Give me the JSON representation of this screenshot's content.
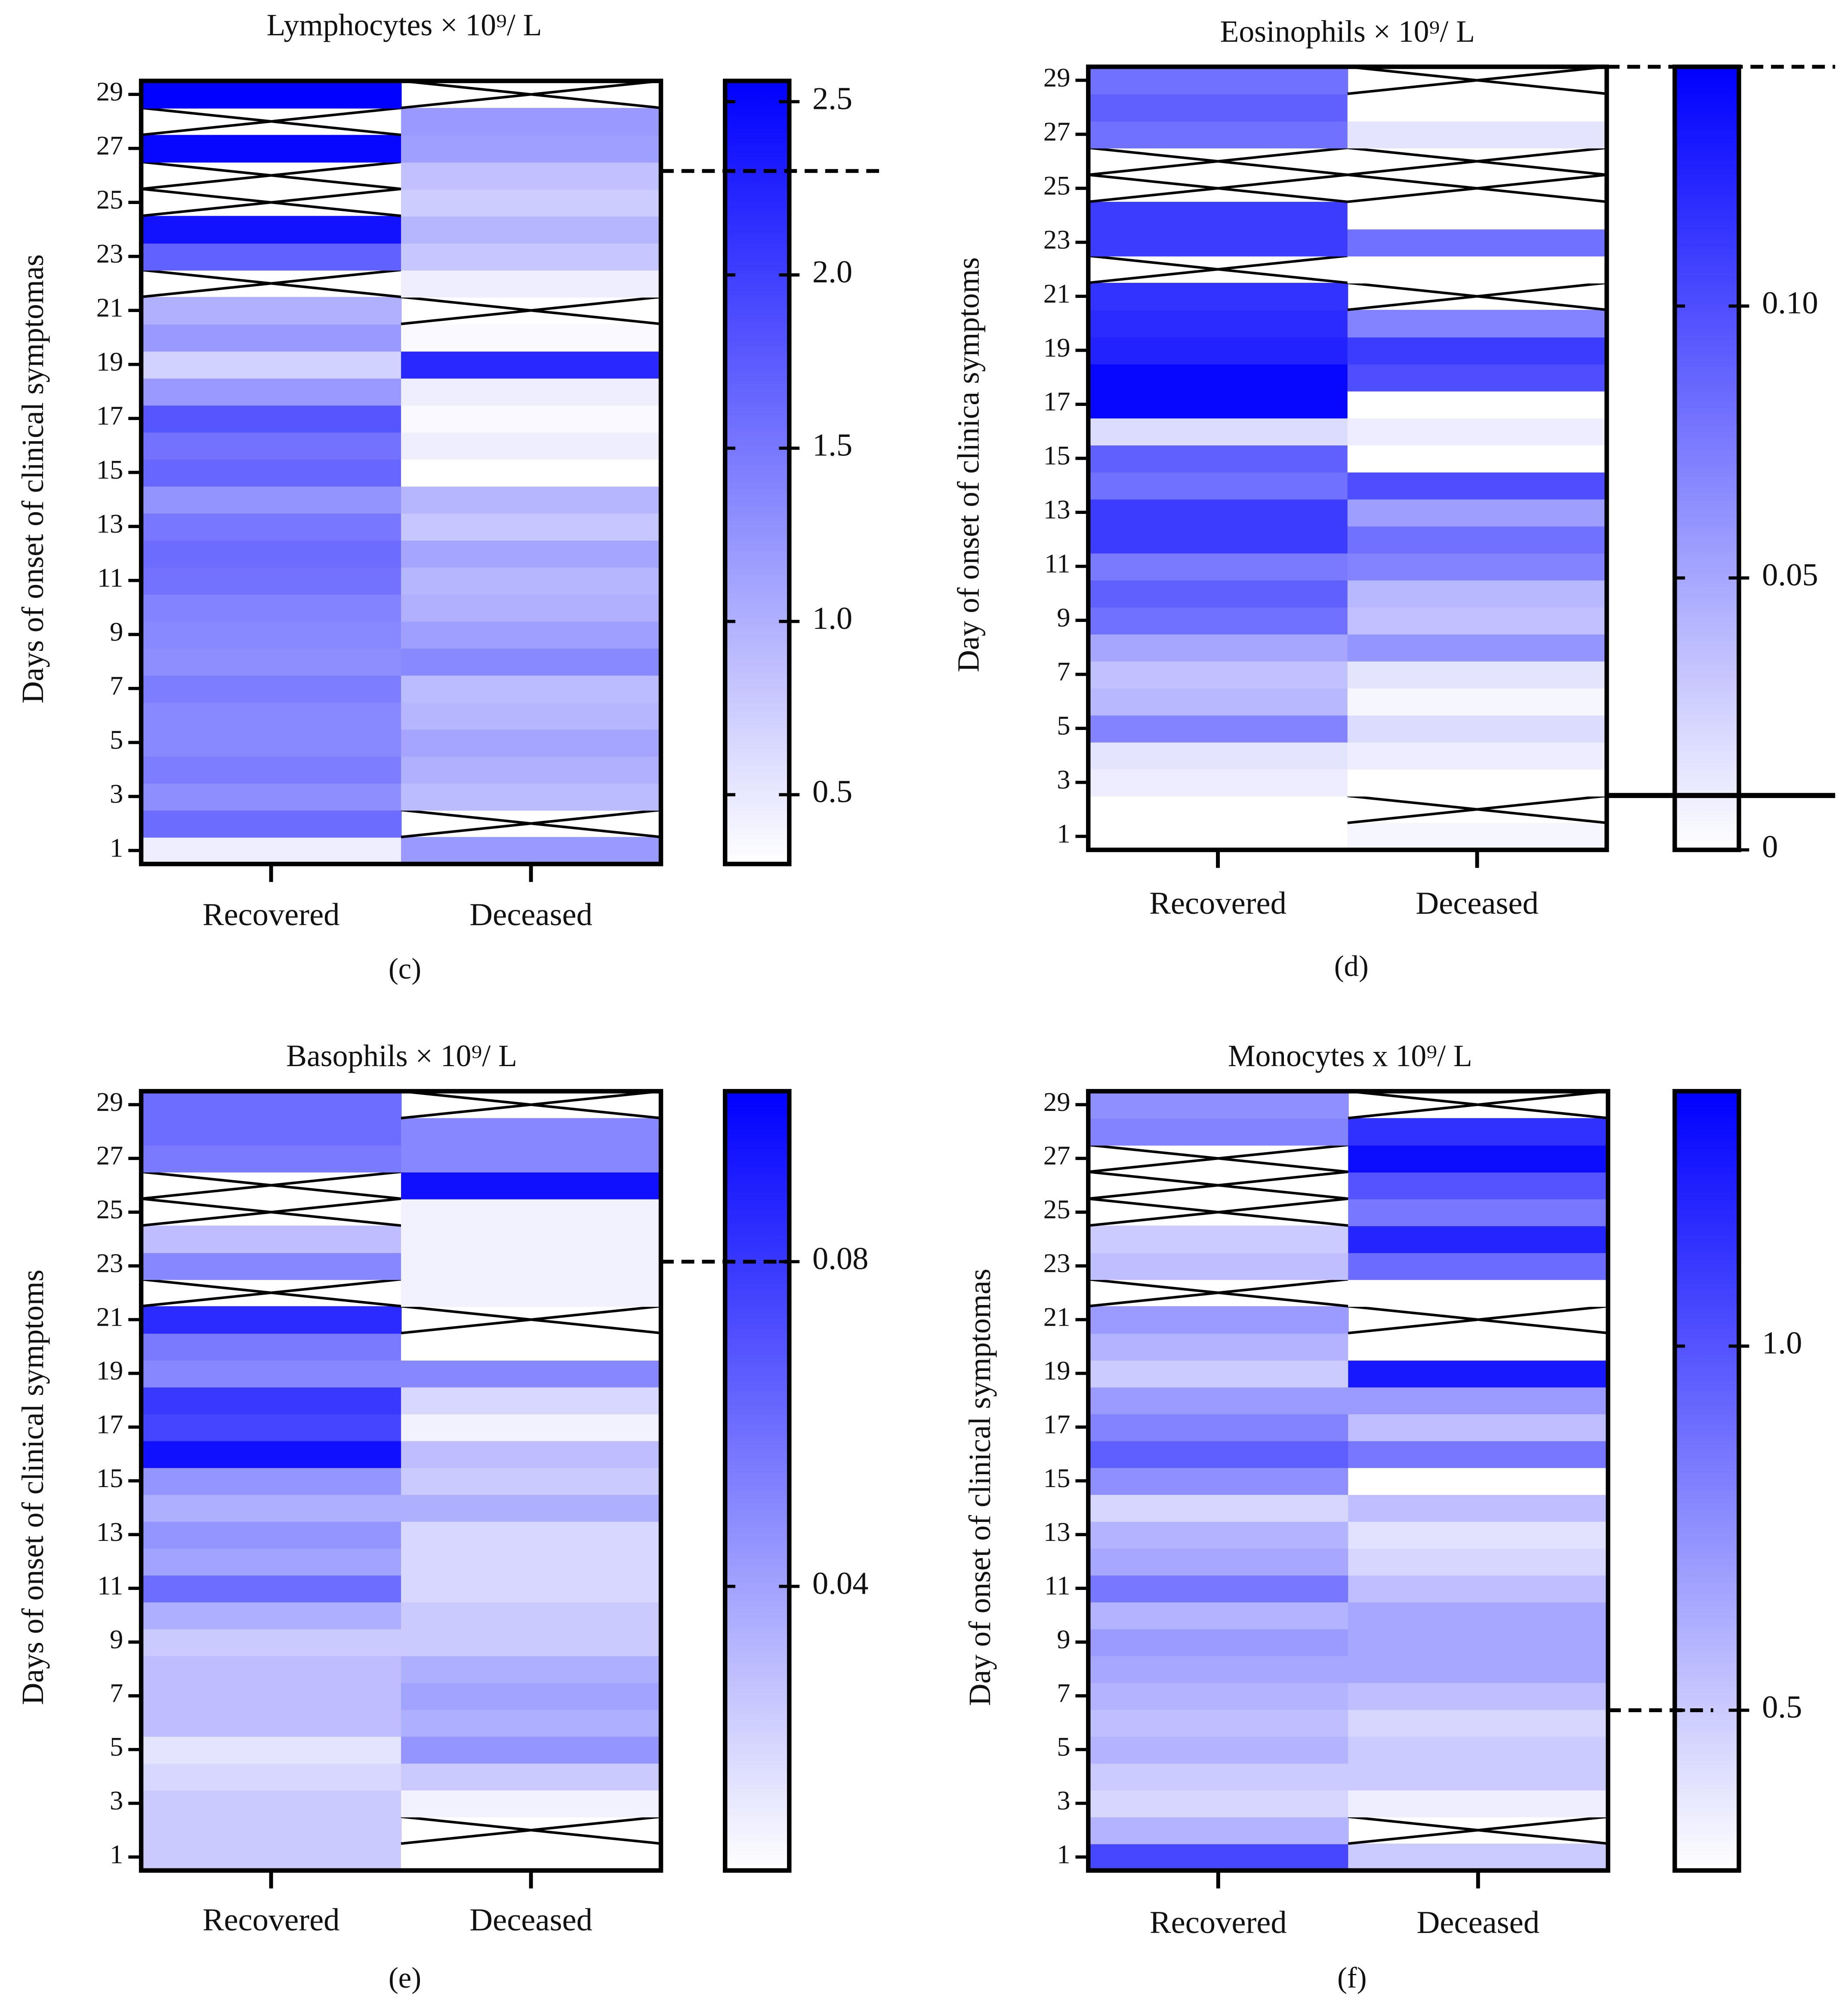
{
  "chart_data": [
    {
      "type": "heatmap",
      "title": "Lymphocytes × 10⁹/ L",
      "panel_label": "(c)",
      "y_label": "Days of onset of clinical symptomas",
      "categories": [
        "Recovered",
        "Deceased"
      ],
      "y": [
        1,
        2,
        3,
        4,
        5,
        6,
        7,
        8,
        9,
        10,
        11,
        12,
        13,
        14,
        15,
        16,
        17,
        18,
        19,
        20,
        21,
        22,
        23,
        24,
        25,
        26,
        27,
        28,
        29
      ],
      "ylim": [
        0.5,
        29.5
      ],
      "yticks": [
        1,
        3,
        5,
        7,
        9,
        11,
        13,
        15,
        17,
        19,
        21,
        23,
        25,
        27,
        29
      ],
      "values": [
        [
          0.45,
          1.6,
          1.3,
          1.45,
          1.35,
          1.35,
          1.45,
          1.3,
          1.35,
          1.4,
          1.55,
          1.6,
          1.5,
          1.25,
          1.65,
          1.55,
          1.8,
          1.2,
          0.7,
          1.2,
          1.0,
          null,
          1.7,
          2.4,
          null,
          null,
          2.5,
          null,
          2.55
        ],
        [
          1.2,
          null,
          0.9,
          1.0,
          1.1,
          0.95,
          0.9,
          1.35,
          1.15,
          1.0,
          0.95,
          1.1,
          0.8,
          0.95,
          0.3,
          0.45,
          0.35,
          0.45,
          2.2,
          0.35,
          null,
          0.45,
          0.8,
          0.95,
          0.75,
          0.85,
          1.15,
          1.2,
          null
        ]
      ],
      "colorscale": [
        "#ffffff",
        "#0000ff"
      ],
      "clim": [
        0.3,
        2.56
      ],
      "cticks": [
        0.5,
        {
          "value": 1.0,
          "label": "1.0"
        },
        1.5,
        {
          "value": 2.0,
          "label": "2.0"
        },
        2.5
      ],
      "reference_lines": [
        {
          "value": 2.3,
          "style": "dashed"
        }
      ]
    },
    {
      "type": "heatmap",
      "title": "Eosinophils × 10⁹/ L",
      "panel_label": "(d)",
      "y_label": "Day of onset of clinica symptoms",
      "categories": [
        "Recovered",
        "Deceased"
      ],
      "y": [
        1,
        2,
        3,
        4,
        5,
        6,
        7,
        8,
        9,
        10,
        11,
        12,
        13,
        14,
        15,
        16,
        17,
        18,
        19,
        20,
        21,
        22,
        23,
        24,
        25,
        26,
        27,
        28,
        29
      ],
      "ylim": [
        0.5,
        29.5
      ],
      "yticks": [
        1,
        3,
        5,
        7,
        9,
        11,
        13,
        15,
        17,
        19,
        21,
        23,
        25,
        27,
        29
      ],
      "values": [
        [
          0,
          0,
          0.01,
          0.015,
          0.07,
          0.04,
          0.035,
          0.05,
          0.08,
          0.09,
          0.075,
          0.11,
          0.11,
          0.08,
          0.09,
          0.02,
          0.14,
          0.14,
          0.125,
          0.12,
          0.115,
          null,
          0.11,
          0.11,
          null,
          null,
          0.08,
          0.09,
          0.08
        ],
        [
          0.005,
          null,
          0,
          0.01,
          0.02,
          0.005,
          0.015,
          0.06,
          0.035,
          0.04,
          0.07,
          0.08,
          0.055,
          0.1,
          0,
          0.01,
          0,
          0.1,
          0.11,
          0.07,
          null,
          0,
          0.08,
          0,
          null,
          null,
          0.015,
          0,
          null
        ]
      ],
      "colorscale": [
        "#ffffff",
        "#0000ff"
      ],
      "clim": [
        0,
        0.144
      ],
      "cticks": [
        0,
        0.05,
        {
          "value": 0.1,
          "label": "0.10"
        }
      ],
      "reference_lines": [
        {
          "value": 0.144,
          "style": "dashed"
        },
        {
          "value": 0.01,
          "style": "solid"
        }
      ]
    },
    {
      "type": "heatmap",
      "title": "Basophils × 10⁹/ L",
      "panel_label": "(e)",
      "y_label": "Days of onset of clinical symptoms",
      "categories": [
        "Recovered",
        "Deceased"
      ],
      "y": [
        1,
        2,
        3,
        4,
        5,
        6,
        7,
        8,
        9,
        10,
        11,
        12,
        13,
        14,
        15,
        16,
        17,
        18,
        19,
        20,
        21,
        22,
        23,
        24,
        25,
        26,
        27,
        28,
        29
      ],
      "ylim": [
        0.5,
        29.5
      ],
      "yticks": [
        1,
        3,
        5,
        7,
        9,
        11,
        13,
        15,
        17,
        19,
        21,
        23,
        25,
        27,
        29
      ],
      "values": [
        [
          0.025,
          0.025,
          0.025,
          0.02,
          0.015,
          0.03,
          0.03,
          0.03,
          0.025,
          0.035,
          0.06,
          0.04,
          0.045,
          0.035,
          0.045,
          0.095,
          0.075,
          0.08,
          0.05,
          0.055,
          0.085,
          null,
          0.05,
          0.03,
          null,
          null,
          0.055,
          0.06,
          0.06
        ],
        [
          0.005,
          null,
          0.01,
          0.025,
          0.045,
          0.035,
          0.04,
          0.035,
          0.025,
          0.025,
          0.02,
          0.02,
          0.02,
          0.035,
          0.025,
          0.03,
          0.01,
          0.02,
          0.05,
          0.005,
          null,
          0.01,
          0.01,
          0.01,
          0.01,
          0.095,
          0.05,
          0.05,
          null
        ]
      ],
      "colorscale": [
        "#ffffff",
        "#0000ff"
      ],
      "clim": [
        0.005,
        0.101
      ],
      "cticks": [
        0.04,
        0.08
      ],
      "reference_lines": [
        {
          "value": 0.08,
          "style": "dashed"
        }
      ]
    },
    {
      "type": "heatmap",
      "title": "Monocytes x 10⁹/ L",
      "panel_label": "(f)",
      "y_label": "Day of onset of clinical symptomas",
      "categories": [
        "Recovered",
        "Deceased"
      ],
      "y": [
        1,
        2,
        3,
        4,
        5,
        6,
        7,
        8,
        9,
        10,
        11,
        12,
        13,
        14,
        15,
        16,
        17,
        18,
        19,
        20,
        21,
        22,
        23,
        24,
        25,
        26,
        27,
        28,
        29
      ],
      "ylim": [
        0.5,
        29.5
      ],
      "yticks": [
        1,
        3,
        5,
        7,
        9,
        11,
        13,
        15,
        17,
        19,
        21,
        23,
        25,
        27,
        29
      ],
      "values": [
        [
          1.05,
          0.6,
          0.45,
          0.5,
          0.6,
          0.55,
          0.6,
          0.65,
          0.7,
          0.6,
          0.85,
          0.65,
          0.6,
          0.45,
          0.75,
          0.95,
          0.8,
          0.7,
          0.5,
          0.6,
          0.7,
          null,
          0.55,
          0.5,
          null,
          null,
          null,
          0.8,
          0.75
        ],
        [
          0.5,
          null,
          0.35,
          0.5,
          0.5,
          0.45,
          0.55,
          0.65,
          0.65,
          0.65,
          0.55,
          0.45,
          0.4,
          0.55,
          0.28,
          0.85,
          0.55,
          0.7,
          1.25,
          0.28,
          null,
          0.28,
          0.9,
          1.2,
          0.85,
          1.0,
          1.3,
          1.15,
          null
        ]
      ],
      "colorscale": [
        "#ffffff",
        "#0000ff"
      ],
      "clim": [
        0.28,
        1.35
      ],
      "cticks": [
        0.5,
        {
          "value": 1.0,
          "label": "1.0"
        }
      ],
      "reference_lines": [
        {
          "value": 0.5,
          "style": "dashed"
        }
      ]
    }
  ]
}
